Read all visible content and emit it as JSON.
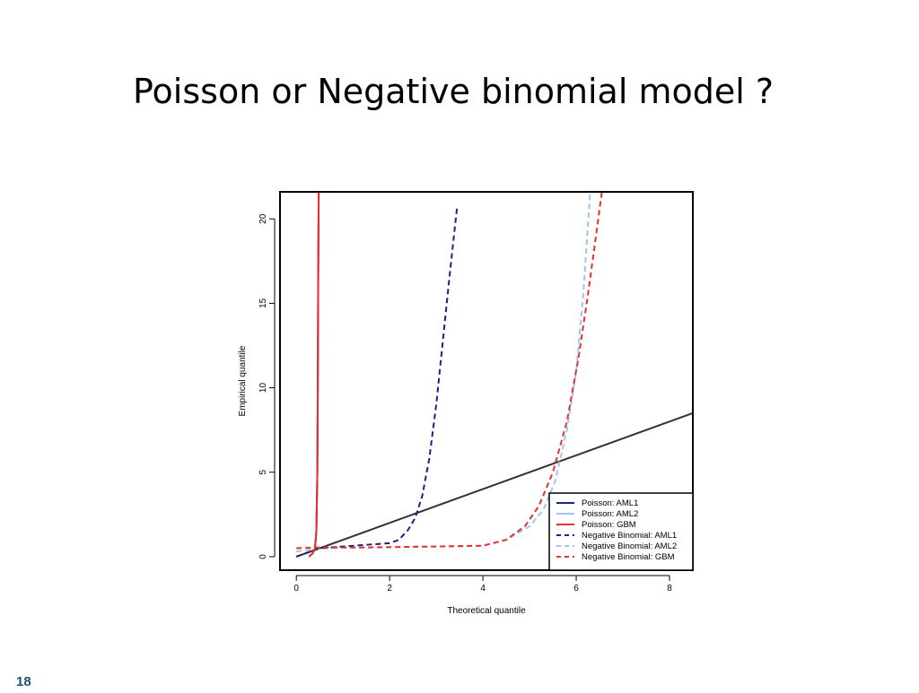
{
  "slide": {
    "title": "Poisson or Negative binomial model ?",
    "page_number": "18"
  },
  "chart_data": {
    "type": "line",
    "title": "",
    "xlabel": "Theoretical quantile",
    "ylabel": "Empirical quantile",
    "xlim": [
      -0.35,
      8.5
    ],
    "ylim": [
      -0.8,
      21.6
    ],
    "xticks": [
      0,
      2,
      4,
      6,
      8
    ],
    "yticks": [
      0,
      5,
      10,
      15,
      20
    ],
    "grid": false,
    "legend_position": "bottom-right",
    "reference_line": {
      "x": [
        0,
        8.5
      ],
      "y": [
        0,
        8.5
      ],
      "color": "#333333"
    },
    "series": [
      {
        "name": "Poisson: AML1",
        "color": "#1a237e",
        "dash": "solid",
        "x": [
          0.27,
          0.35,
          0.4,
          0.43,
          0.45,
          0.46,
          0.47,
          0.48
        ],
        "y": [
          0.0,
          0.2,
          0.5,
          1.5,
          5.0,
          10.0,
          17.0,
          21.6
        ]
      },
      {
        "name": "Poisson: AML2",
        "color": "#9fc5e8",
        "dash": "solid",
        "x": [
          0.27,
          0.35,
          0.4,
          0.43,
          0.45,
          0.46,
          0.47,
          0.48
        ],
        "y": [
          0.0,
          0.2,
          0.5,
          1.5,
          5.0,
          10.0,
          17.0,
          21.6
        ]
      },
      {
        "name": "Poisson: GBM",
        "color": "#e8312f",
        "dash": "solid",
        "x": [
          0.27,
          0.35,
          0.4,
          0.43,
          0.45,
          0.46,
          0.47,
          0.48
        ],
        "y": [
          0.0,
          0.2,
          0.5,
          1.5,
          5.0,
          10.0,
          17.0,
          21.6
        ]
      },
      {
        "name": "Negative Binomial: AML1",
        "color": "#1a237e",
        "dash": "dashed",
        "x": [
          0.0,
          0.5,
          1.0,
          1.5,
          2.0,
          2.2,
          2.4,
          2.55,
          2.7,
          2.85,
          3.0,
          3.15,
          3.3,
          3.45
        ],
        "y": [
          0.0,
          0.5,
          0.6,
          0.7,
          0.8,
          1.0,
          1.6,
          2.3,
          3.6,
          5.8,
          9.0,
          13.0,
          17.0,
          20.8
        ]
      },
      {
        "name": "Negative Binomial: AML2",
        "color": "#9fc5e8",
        "dash": "dashed",
        "x": [
          0.0,
          0.5,
          1.5,
          3.0,
          4.0,
          4.5,
          5.0,
          5.3,
          5.55,
          5.8,
          6.0,
          6.15,
          6.3
        ],
        "y": [
          0.3,
          0.5,
          0.55,
          0.6,
          0.65,
          1.0,
          1.8,
          2.8,
          4.5,
          7.5,
          11.0,
          15.5,
          21.6
        ]
      },
      {
        "name": "Negative Binomial: GBM",
        "color": "#e8312f",
        "dash": "dashed",
        "x": [
          0.0,
          0.5,
          1.5,
          3.0,
          4.0,
          4.5,
          4.9,
          5.2,
          5.5,
          5.8,
          6.05,
          6.25,
          6.45,
          6.55
        ],
        "y": [
          0.5,
          0.55,
          0.55,
          0.6,
          0.65,
          1.0,
          1.8,
          3.0,
          5.0,
          8.0,
          11.8,
          15.5,
          19.5,
          21.6
        ]
      }
    ]
  }
}
